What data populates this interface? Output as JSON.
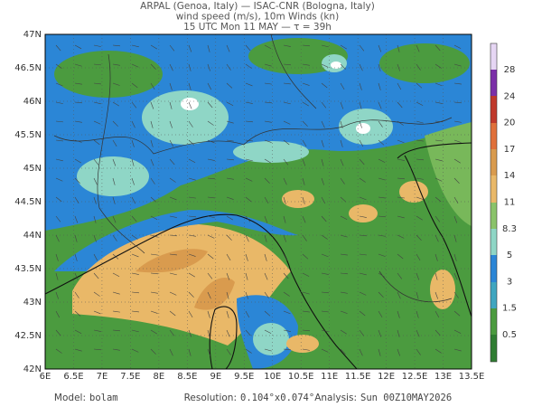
{
  "header": {
    "lines": [
      "ARPAL (Genoa, Italy)  —  ISAC-CNR (Bologna, Italy)",
      "wind speed (m/s), 10m Winds (kn)",
      "15 UTC Mon 11 MAY  —  τ = 39h"
    ]
  },
  "axes": {
    "y_labels": [
      "47N",
      "46.5N",
      "46N",
      "45.5N",
      "45N",
      "44.5N",
      "44N",
      "43.5N",
      "43N",
      "42.5N",
      "42N"
    ],
    "x_labels": [
      "6E",
      "6.5E",
      "7E",
      "7.5E",
      "8E",
      "8.5E",
      "9E",
      "9.5E",
      "10E",
      "10.5E",
      "11E",
      "11.5E",
      "12E",
      "12.5E",
      "13E",
      "13.5E"
    ]
  },
  "colorbar": {
    "labels": [
      "28",
      "24",
      "20",
      "17",
      "14",
      "11",
      "8.3",
      "5",
      "3",
      "1.5",
      "0.5"
    ]
  },
  "footer": {
    "model_label": "Model:",
    "model": "bolam",
    "resolution_label": "Resolution:",
    "resolution": "0.104°x0.074°",
    "analysis_label": "Analysis:",
    "analysis": "Sun 00Z10MAY2026"
  }
}
